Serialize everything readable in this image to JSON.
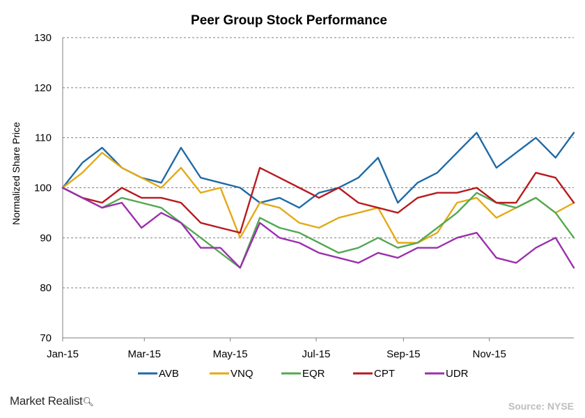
{
  "chart_data": {
    "type": "line",
    "title": "Peer Group Stock Performance",
    "ylabel": "Normalized Share Price",
    "xlabel": "",
    "ylim": [
      70,
      130
    ],
    "yticks": [
      70,
      80,
      90,
      100,
      110,
      120,
      130
    ],
    "grid": "horizontal dashed",
    "legend_position": "bottom",
    "x_range": [
      "2015-01-02",
      "2015-12-31"
    ],
    "xticks": [
      {
        "date": "2015-01-01",
        "label": "Jan-15"
      },
      {
        "date": "2015-03-01",
        "label": "Mar-15"
      },
      {
        "date": "2015-05-01",
        "label": "May-15"
      },
      {
        "date": "2015-07-01",
        "label": "Jul-15"
      },
      {
        "date": "2015-09-01",
        "label": "Sep-15"
      },
      {
        "date": "2015-11-01",
        "label": "Nov-15"
      }
    ],
    "x": [
      "2015-01-02",
      "2015-01-16",
      "2015-01-30",
      "2015-02-13",
      "2015-02-27",
      "2015-03-13",
      "2015-03-27",
      "2015-04-10",
      "2015-04-24",
      "2015-05-08",
      "2015-05-22",
      "2015-06-05",
      "2015-06-19",
      "2015-07-03",
      "2015-07-17",
      "2015-07-31",
      "2015-08-14",
      "2015-08-28",
      "2015-09-11",
      "2015-09-25",
      "2015-10-09",
      "2015-10-23",
      "2015-11-06",
      "2015-11-20",
      "2015-12-04",
      "2015-12-18",
      "2015-12-31"
    ],
    "series": [
      {
        "name": "AVB",
        "color": "#1f6aa5",
        "values": [
          100,
          105,
          108,
          104,
          102,
          101,
          108,
          102,
          101,
          100,
          97,
          98,
          96,
          99,
          100,
          102,
          106,
          97,
          101,
          103,
          107,
          111,
          104,
          107,
          110,
          106,
          111
        ]
      },
      {
        "name": "VNQ",
        "color": "#e3aa17",
        "values": [
          100,
          103,
          107,
          104,
          102,
          100,
          104,
          99,
          100,
          90,
          97,
          96,
          93,
          92,
          94,
          95,
          96,
          89,
          89,
          91,
          97,
          98,
          94,
          96,
          98,
          95,
          97
        ]
      },
      {
        "name": "EQR",
        "color": "#52a852",
        "values": [
          100,
          98,
          96,
          98,
          97,
          96,
          93,
          90,
          87,
          84,
          94,
          92,
          91,
          89,
          87,
          88,
          90,
          88,
          89,
          92,
          95,
          99,
          97,
          96,
          98,
          95,
          90
        ]
      },
      {
        "name": "CPT",
        "color": "#b8191f",
        "values": [
          100,
          98,
          97,
          100,
          98,
          98,
          97,
          93,
          92,
          91,
          104,
          102,
          100,
          98,
          100,
          97,
          96,
          95,
          98,
          99,
          99,
          100,
          97,
          97,
          103,
          102,
          97
        ]
      },
      {
        "name": "UDR",
        "color": "#9b2fae",
        "values": [
          100,
          98,
          96,
          97,
          92,
          95,
          93,
          88,
          88,
          84,
          93,
          90,
          89,
          87,
          86,
          85,
          87,
          86,
          88,
          88,
          90,
          91,
          86,
          85,
          88,
          90,
          84
        ]
      }
    ]
  },
  "footer": {
    "brand": "Market Realist",
    "brand_icon": "magnifier-icon",
    "source": "Source: NYSE"
  }
}
